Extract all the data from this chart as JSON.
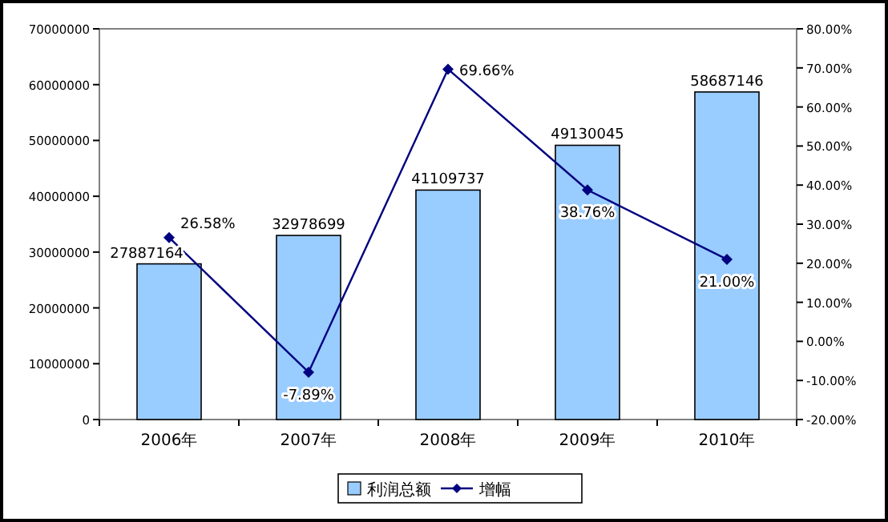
{
  "chart_data": {
    "type": "bar",
    "categories": [
      "2006年",
      "2007年",
      "2008年",
      "2009年",
      "2010年"
    ],
    "series": [
      {
        "name": "利润总额",
        "color": "#99ccff",
        "values": [
          27887164,
          32978699,
          41109737,
          49130045,
          58687146
        ],
        "value_labels": [
          "27887164",
          "32978699",
          "41109737",
          "49130045",
          "58687146"
        ]
      },
      {
        "name": "增幅",
        "type": "line",
        "axis": "y2",
        "color": "#000080",
        "marker": "diamond",
        "values": [
          26.58,
          -7.89,
          69.66,
          38.76,
          21.0
        ],
        "value_labels": [
          "26.58%",
          "-7.89%",
          "69.66%",
          "38.76%",
          "21.00%"
        ]
      }
    ],
    "ylim": [
      0,
      70000000
    ],
    "yticks": [
      0,
      10000000,
      20000000,
      30000000,
      40000000,
      50000000,
      60000000,
      70000000
    ],
    "y2lim": [
      -20,
      80
    ],
    "y2ticks": [
      {
        "value": -20,
        "label": "-20.00%"
      },
      {
        "value": -10,
        "label": "-10.00%"
      },
      {
        "value": 0,
        "label": "0.00%"
      },
      {
        "value": 10,
        "label": "10.00%"
      },
      {
        "value": 20,
        "label": "20.00%"
      },
      {
        "value": 30,
        "label": "30.00%"
      },
      {
        "value": 40,
        "label": "40.00%"
      },
      {
        "value": 50,
        "label": "50.00%"
      },
      {
        "value": 60,
        "label": "60.00%"
      },
      {
        "value": 70,
        "label": "70.00%"
      },
      {
        "value": 80,
        "label": "80.00%"
      }
    ],
    "legend": "bottom",
    "grid": false
  }
}
